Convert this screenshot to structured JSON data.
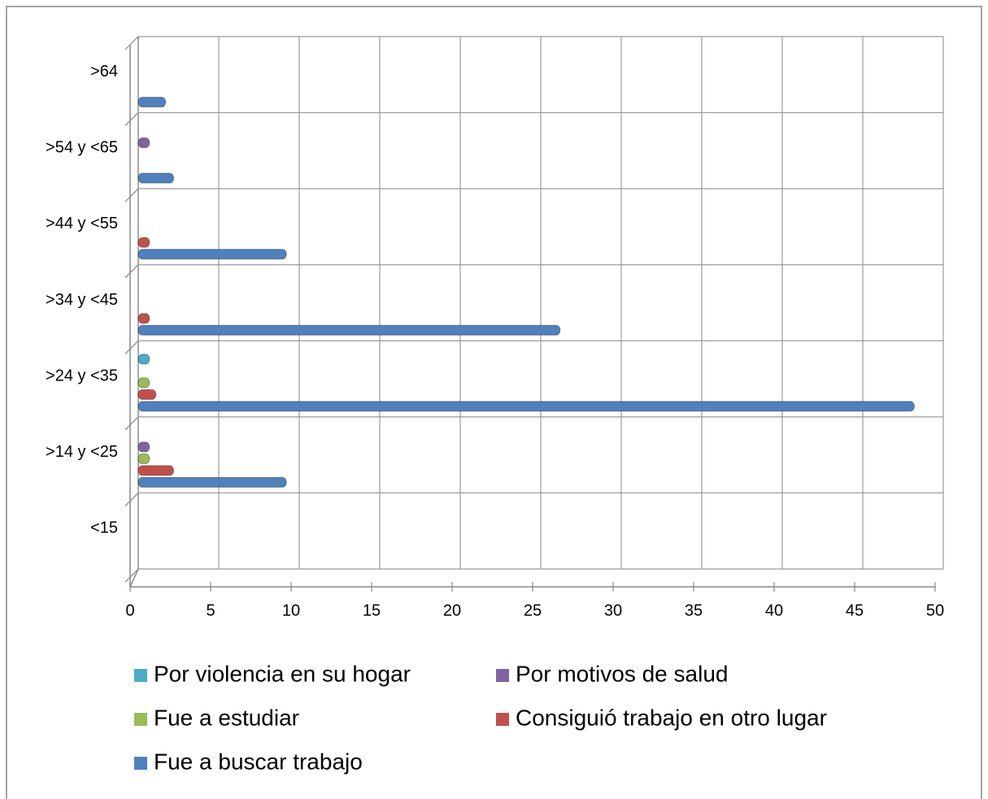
{
  "chart_data": {
    "type": "bar",
    "orientation": "horizontal",
    "categories": [
      "<15",
      ">14 y <25",
      ">24 y <35",
      ">34 y <45",
      ">44 y <55",
      ">54 y <65",
      ">64"
    ],
    "series": [
      {
        "name": "Por violencia en su hogar",
        "color": "#4bacc6",
        "values": [
          null,
          null,
          0.5,
          null,
          null,
          null,
          null
        ]
      },
      {
        "name": "Por motivos de salud",
        "color": "#8064a2",
        "values": [
          null,
          0.5,
          null,
          null,
          null,
          0.5,
          null
        ]
      },
      {
        "name": "Fue a estudiar",
        "color": "#9bbb59",
        "values": [
          null,
          0.5,
          0.5,
          null,
          null,
          null,
          null
        ]
      },
      {
        "name": "Consiguió trabajo en otro lugar",
        "color": "#c0504d",
        "values": [
          null,
          2,
          0.9,
          0.5,
          0.5,
          null,
          null
        ]
      },
      {
        "name": "Fue a buscar trabajo",
        "color": "#4f81bd",
        "values": [
          null,
          9,
          48,
          26,
          9,
          2,
          1.5
        ]
      }
    ],
    "xlim": [
      0,
      50
    ],
    "xticks": [
      0,
      5,
      10,
      15,
      20,
      25,
      30,
      35,
      40,
      45,
      50
    ],
    "grid": true,
    "legend": "bottom"
  }
}
